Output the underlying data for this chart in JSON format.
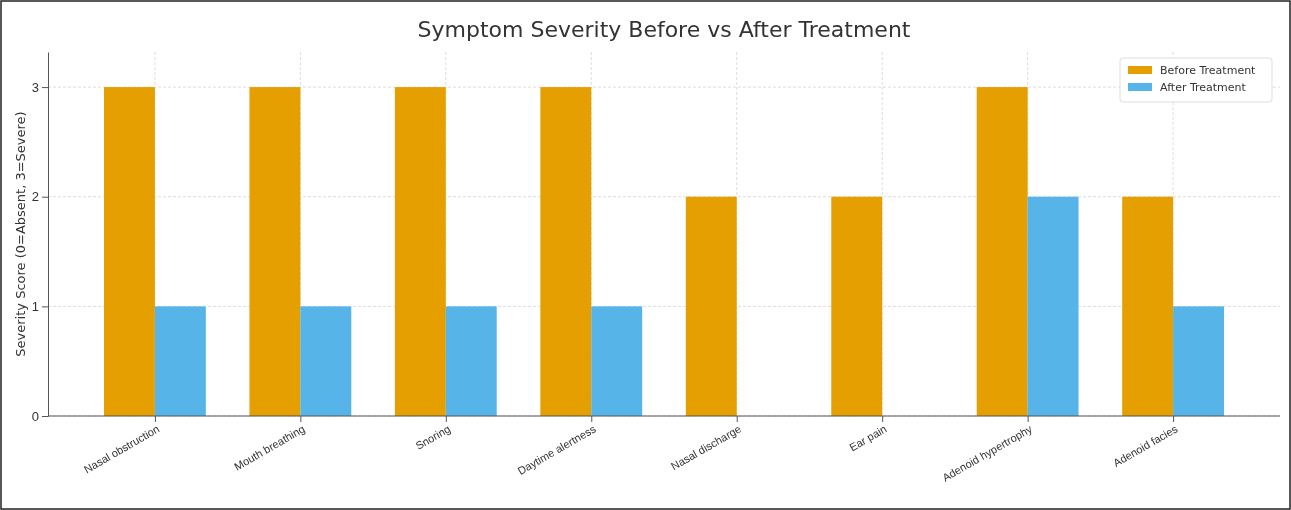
{
  "chart_data": {
    "type": "bar",
    "title": "Symptom Severity Before vs After Treatment",
    "ylabel": "Severity Score (0=Absent, 3=Severe)",
    "categories": [
      "Nasal obstruction",
      "Mouth breathing",
      "Snoring",
      "Daytime alertness",
      "Nasal discharge",
      "Ear pain",
      "Adenoid hypertrophy",
      "Adenoid facies"
    ],
    "series": [
      {
        "name": "Before Treatment",
        "color": "#e69f00",
        "values": [
          3,
          3,
          3,
          3,
          2,
          2,
          3,
          2
        ]
      },
      {
        "name": "After Treatment",
        "color": "#56b4e9",
        "values": [
          1,
          1,
          1,
          1,
          0,
          0,
          2,
          1
        ]
      }
    ],
    "ylim": [
      0,
      3.32
    ],
    "yticks": [
      0,
      1,
      2,
      3
    ],
    "grid": true,
    "legend": "top right"
  }
}
